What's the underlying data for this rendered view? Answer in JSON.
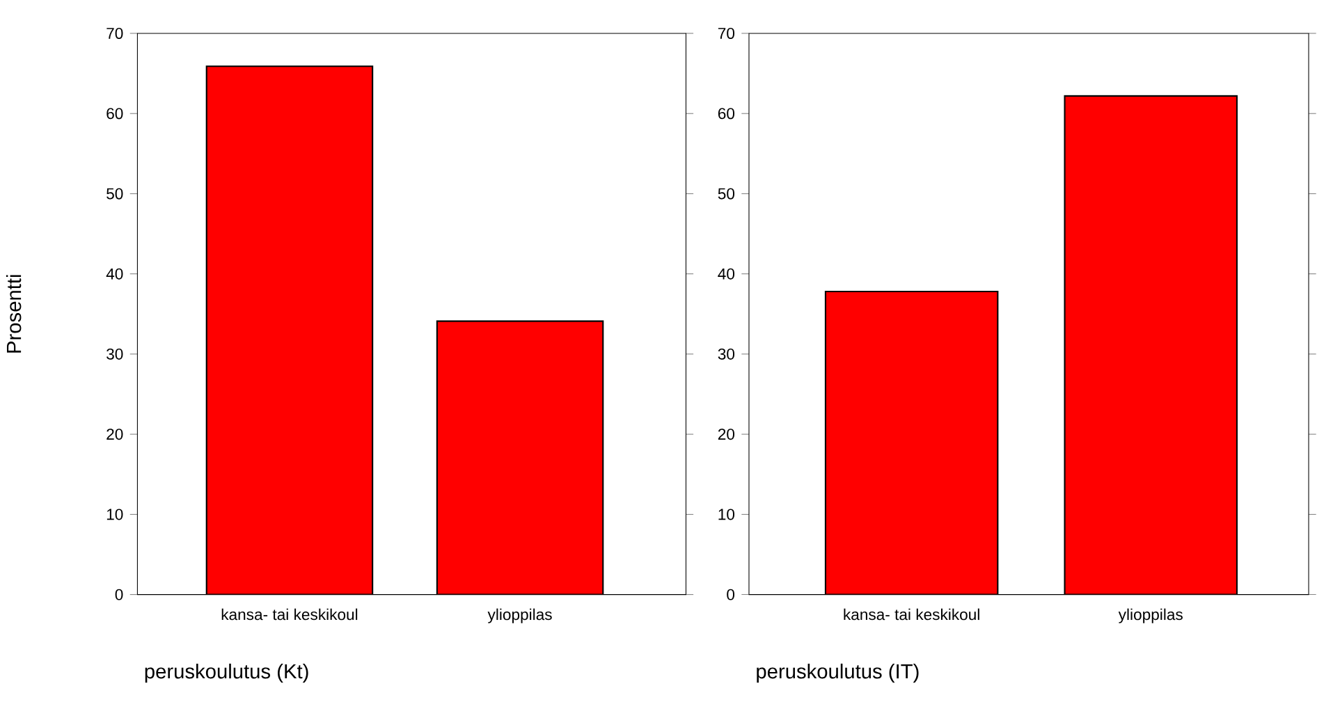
{
  "chart_data": [
    {
      "type": "bar",
      "categories": [
        "kansa- tai keskikoul",
        "ylioppilas"
      ],
      "values": [
        65.9,
        34.1
      ],
      "color": "#ff0000",
      "ylim": [
        0,
        70
      ],
      "yticks": [
        0,
        10,
        20,
        30,
        40,
        50,
        60,
        70
      ],
      "xlabel": "peruskoulutus (Kt)",
      "ylabel": "Prosentti"
    },
    {
      "type": "bar",
      "categories": [
        "kansa- tai keskikoul",
        "ylioppilas"
      ],
      "values": [
        37.8,
        62.2
      ],
      "color": "#ff0000",
      "ylim": [
        0,
        70
      ],
      "yticks": [
        0,
        10,
        20,
        30,
        40,
        50,
        60,
        70
      ],
      "xlabel": "peruskoulutus (IT)"
    }
  ]
}
